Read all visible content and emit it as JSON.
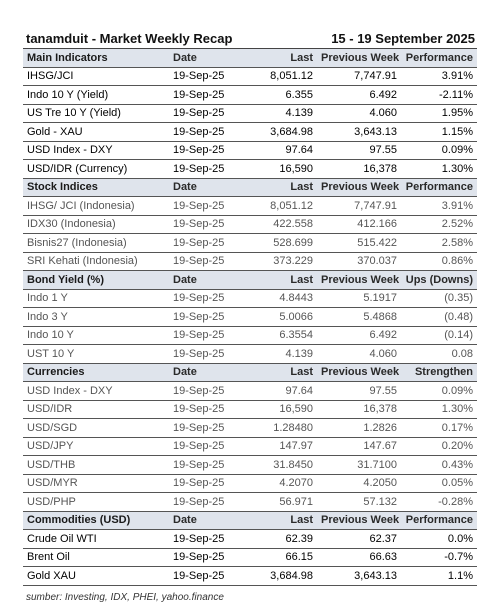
{
  "header": {
    "brand_title": "tanamduit - Market Weekly Recap",
    "period": "15 - 19 September 2025"
  },
  "sections": [
    {
      "name": "Main Indicators",
      "columns": [
        "Date",
        "Last",
        "Previous Week",
        "Performance"
      ],
      "rows": [
        {
          "name": "IHSG/JCI",
          "date": "19-Sep-25",
          "last": "8,051.12",
          "prev": "7,747.91",
          "perf": "3.91%",
          "style": "b"
        },
        {
          "name": "Indo 10 Y (Yield)",
          "date": "19-Sep-25",
          "last": "6.355",
          "prev": "6.492",
          "perf": "-2.11%",
          "style": "b"
        },
        {
          "name": "US Tre 10 Y (Yield)",
          "date": "19-Sep-25",
          "last": "4.139",
          "prev": "4.060",
          "perf": "1.95%",
          "style": "b"
        },
        {
          "name": "Gold - XAU",
          "date": "19-Sep-25",
          "last": "3,684.98",
          "prev": "3,643.13",
          "perf": "1.15%",
          "style": "b"
        },
        {
          "name": "USD Index - DXY",
          "date": "19-Sep-25",
          "last": "97.64",
          "prev": "97.55",
          "perf": "0.09%",
          "style": "b"
        },
        {
          "name": "USD/IDR (Currency)",
          "date": "19-Sep-25",
          "last": "16,590",
          "prev": "16,378",
          "perf": "1.30%",
          "style": "b"
        }
      ]
    },
    {
      "name": "Stock Indices",
      "columns": [
        "Date",
        "Last",
        "Previous Week",
        "Performance"
      ],
      "rows": [
        {
          "name": "IHSG/ JCI (Indonesia)",
          "date": "19-Sep-25",
          "last": "8,051.12",
          "prev": "7,747.91",
          "perf": "3.91%",
          "style": "g"
        },
        {
          "name": "IDX30 (Indonesia)",
          "date": "19-Sep-25",
          "last": "422.558",
          "prev": "412.166",
          "perf": "2.52%",
          "style": "g"
        },
        {
          "name": "Bisnis27 (Indonesia)",
          "date": "19-Sep-25",
          "last": "528.699",
          "prev": "515.422",
          "perf": "2.58%",
          "style": "g"
        },
        {
          "name": "SRI Kehati (Indonesia)",
          "date": "19-Sep-25",
          "last": "373.229",
          "prev": "370.037",
          "perf": "0.86%",
          "style": "g"
        }
      ]
    },
    {
      "name": "Bond Yield (%)",
      "columns": [
        "Date",
        "Last",
        "Previous Week",
        "Ups (Downs)"
      ],
      "rows": [
        {
          "name": "Indo 1 Y",
          "date": "19-Sep-25",
          "last": "4.8443",
          "prev": "5.1917",
          "perf": "(0.35)",
          "style": "g"
        },
        {
          "name": "Indo 3 Y",
          "date": "19-Sep-25",
          "last": "5.0066",
          "prev": "5.4868",
          "perf": "(0.48)",
          "style": "g"
        },
        {
          "name": "Indo 10 Y",
          "date": "19-Sep-25",
          "last": "6.3554",
          "prev": "6.492",
          "perf": "(0.14)",
          "style": "g"
        },
        {
          "name": "UST 10 Y",
          "date": "19-Sep-25",
          "last": "4.139",
          "prev": "4.060",
          "perf": "0.08",
          "style": "g"
        }
      ]
    },
    {
      "name": "Currencies",
      "columns": [
        "Date",
        "Last",
        "Previous Week",
        "Strengthen"
      ],
      "rows": [
        {
          "name": "USD Index - DXY",
          "date": "19-Sep-25",
          "last": "97.64",
          "prev": "97.55",
          "perf": "0.09%",
          "style": "g"
        },
        {
          "name": "USD/IDR",
          "date": "19-Sep-25",
          "last": "16,590",
          "prev": "16,378",
          "perf": "1.30%",
          "style": "g"
        },
        {
          "name": "USD/SGD",
          "date": "19-Sep-25",
          "last": "1.28480",
          "prev": "1.2826",
          "perf": "0.17%",
          "style": "g"
        },
        {
          "name": "USD/JPY",
          "date": "19-Sep-25",
          "last": "147.97",
          "prev": "147.67",
          "perf": "0.20%",
          "style": "g"
        },
        {
          "name": "USD/THB",
          "date": "19-Sep-25",
          "last": "31.8450",
          "prev": "31.7100",
          "perf": "0.43%",
          "style": "g"
        },
        {
          "name": "USD/MYR",
          "date": "19-Sep-25",
          "last": "4.2070",
          "prev": "4.2050",
          "perf": "0.05%",
          "style": "g"
        },
        {
          "name": "USD/PHP",
          "date": "19-Sep-25",
          "last": "56.971",
          "prev": "57.132",
          "perf": "-0.28%",
          "style": "g"
        }
      ]
    },
    {
      "name": "Commodities (USD)",
      "columns": [
        "Date",
        "Last",
        "Previous Week",
        "Performance"
      ],
      "rows": [
        {
          "name": "Crude Oil WTI",
          "date": "19-Sep-25",
          "last": "62.39",
          "prev": "62.37",
          "perf": "0.0%",
          "style": "b"
        },
        {
          "name": "Brent Oil",
          "date": "19-Sep-25",
          "last": "66.15",
          "prev": "66.63",
          "perf": "-0.7%",
          "style": "b"
        },
        {
          "name": "Gold XAU",
          "date": "19-Sep-25",
          "last": "3,684.98",
          "prev": "3,643.13",
          "perf": "1.1%",
          "style": "b"
        }
      ]
    }
  ],
  "footer": {
    "source": "sumber: Investing, IDX, PHEI, yahoo.finance"
  },
  "colors": {
    "header_row_bg": "#dfe4ec",
    "text": "#111111",
    "muted_text": "#555555"
  }
}
